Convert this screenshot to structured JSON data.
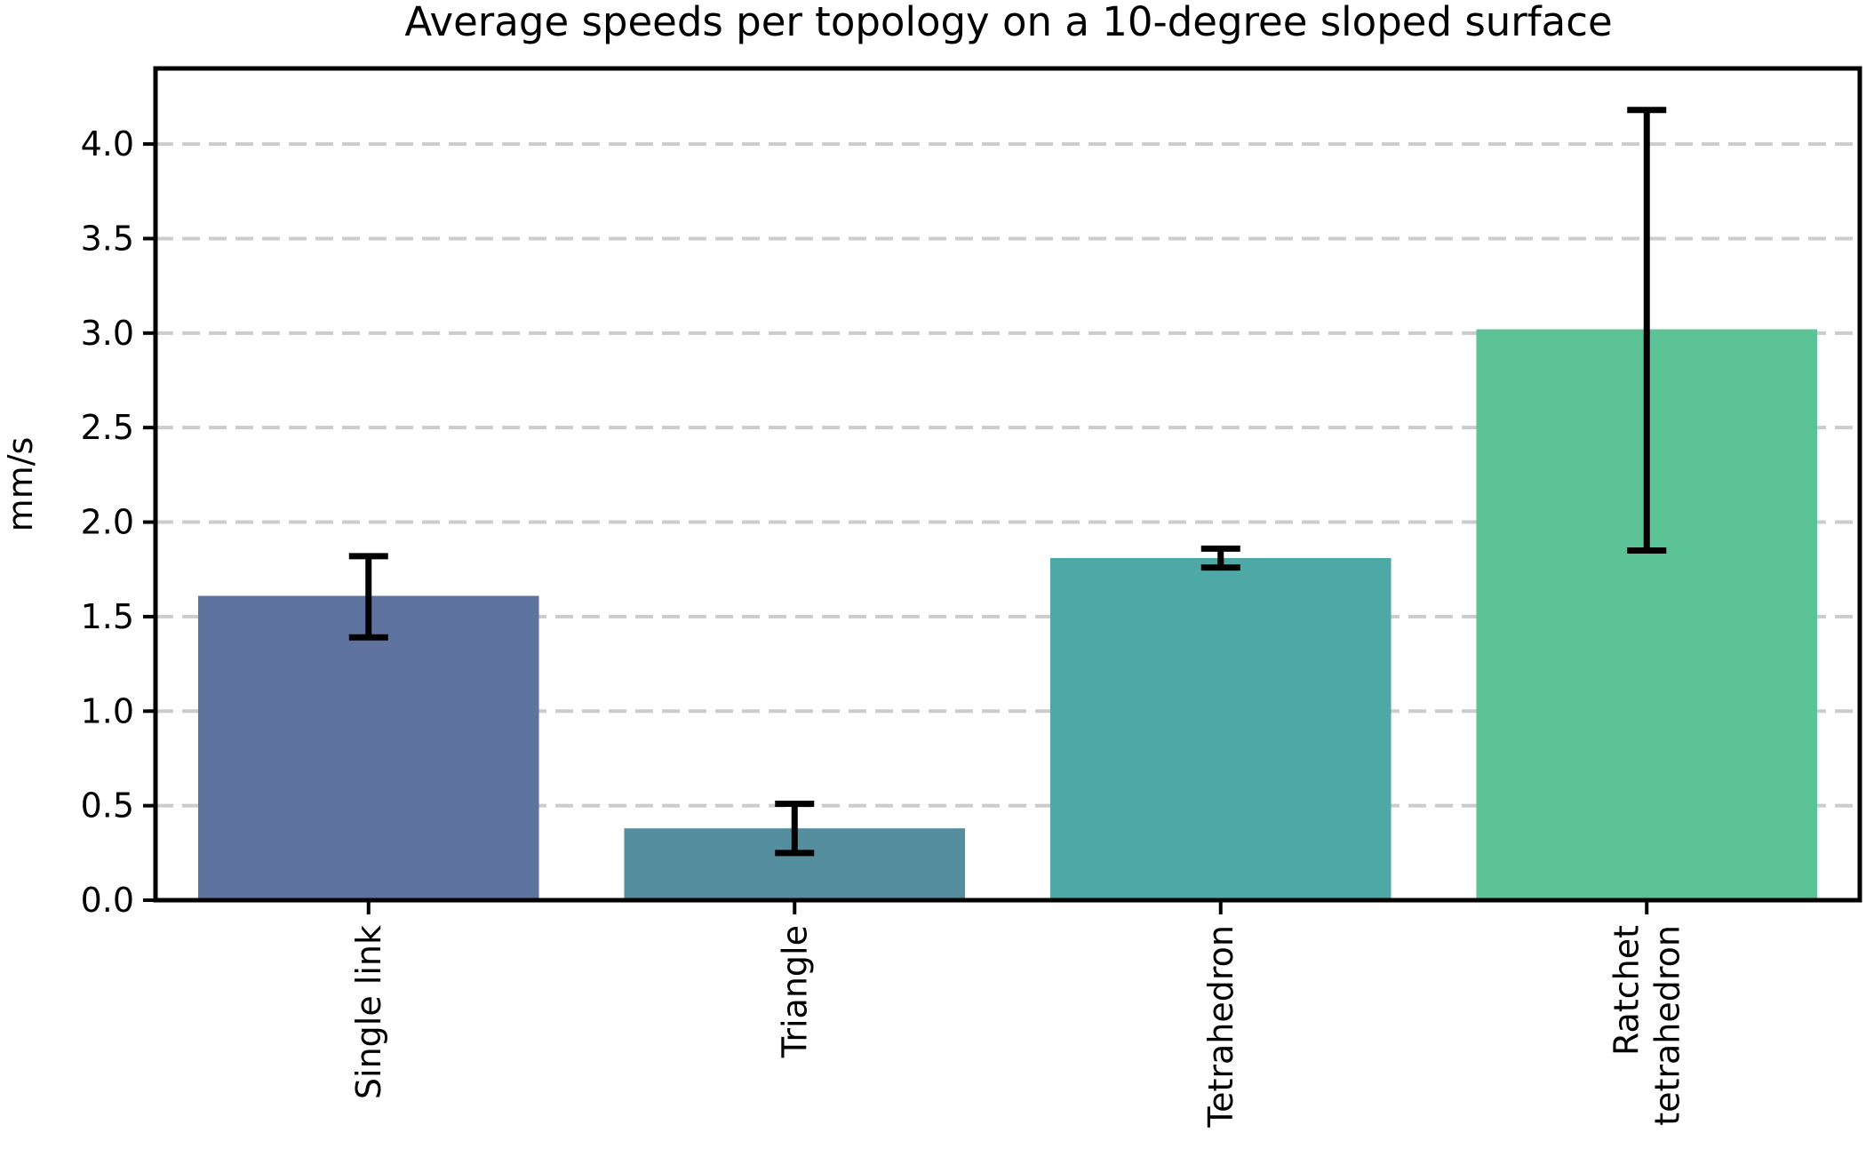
{
  "chart_data": {
    "type": "bar",
    "title": "Average speeds per topology on a 10-degree sloped surface",
    "xlabel": "",
    "ylabel": "mm/s",
    "categories": [
      [
        "Single link"
      ],
      [
        "Triangle"
      ],
      [
        "Tetrahedron"
      ],
      [
        "Ratchet",
        "tetrahedron"
      ]
    ],
    "values": [
      1.61,
      0.38,
      1.81,
      3.02
    ],
    "error_bars": [
      {
        "low": 1.39,
        "high": 1.82
      },
      {
        "low": 0.25,
        "high": 0.51
      },
      {
        "low": 1.76,
        "high": 1.86
      },
      {
        "low": 1.85,
        "high": 4.18
      }
    ],
    "colors": [
      "#5f73a0",
      "#558e9f",
      "#4ea9a6",
      "#5bc396"
    ],
    "errorbar_color": "#000000",
    "ylim": [
      0,
      4.4
    ],
    "yticks": [
      0.0,
      0.5,
      1.0,
      1.5,
      2.0,
      2.5,
      3.0,
      3.5,
      4.0
    ],
    "ytick_labels": [
      "0.0",
      "0.5",
      "1.0",
      "1.5",
      "2.0",
      "2.5",
      "3.0",
      "3.5",
      "4.0"
    ],
    "grid": {
      "axis": "y",
      "style": "dashed",
      "color": "#cccccc"
    },
    "legend": "none"
  }
}
